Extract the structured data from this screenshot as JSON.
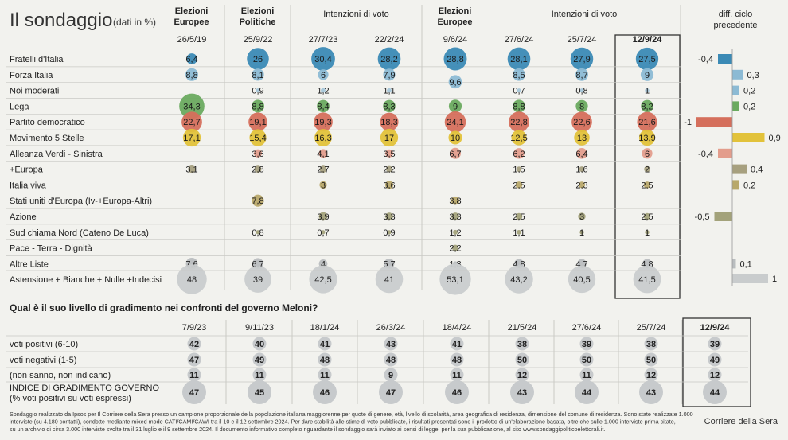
{
  "title": "Il sondaggio",
  "title_note": "(dati in %)",
  "poll": {
    "groups": [
      {
        "label": [
          "Elezioni",
          "Europee"
        ],
        "bold": true,
        "span": 1
      },
      {
        "label": [
          "Elezioni",
          "Politiche"
        ],
        "bold": true,
        "span": 1
      },
      {
        "label": [
          "Intenzioni di voto"
        ],
        "bold": false,
        "span": 2
      },
      {
        "label": [
          "Elezioni",
          "Europee"
        ],
        "bold": true,
        "span": 1
      },
      {
        "label": [
          "Intenzioni di voto"
        ],
        "bold": false,
        "span": 3
      }
    ],
    "dates": [
      "26/5/19",
      "25/9/22",
      "27/7/23",
      "22/2/24",
      "9/6/24",
      "27/6/24",
      "25/7/24",
      "12/9/24"
    ],
    "diff_header": [
      "diff. ciclo",
      "precedente"
    ]
  },
  "chart_data": [
    {
      "type": "bubble-table",
      "title": "Il sondaggio (dati in %)",
      "columns": [
        "26/5/19",
        "25/9/22",
        "27/7/23",
        "22/2/24",
        "9/6/24",
        "27/6/24",
        "25/7/24",
        "12/9/24"
      ],
      "highlight_column": "12/9/24",
      "rows": [
        {
          "label": "Fratelli d'Italia",
          "color": "#3b8ab5",
          "values": [
            "6,4",
            "26",
            "30,4",
            "28,2",
            "28,8",
            "28,1",
            "27,9",
            "27,5"
          ],
          "diff": "-0,4"
        },
        {
          "label": "Forza Italia",
          "color": "#8cbad4",
          "values": [
            "8,8",
            "8,1",
            "6",
            "7,9",
            "9,6",
            "8,5",
            "8,7",
            "9"
          ],
          "diff": "0,3"
        },
        {
          "label": "Noi moderati",
          "color": "#a6c6d8",
          "values": [
            "",
            "0,9",
            "1,2",
            "1,1",
            "",
            "0,7",
            "0,8",
            "1"
          ],
          "diff": "0,2"
        },
        {
          "label": "Lega",
          "color": "#6aaa5f",
          "values": [
            "34,3",
            "8,8",
            "8,4",
            "8,3",
            "9",
            "8,8",
            "8",
            "8,2"
          ],
          "diff": "0,2"
        },
        {
          "label": "Partito democratico",
          "color": "#d56f5c",
          "values": [
            "22,7",
            "19,1",
            "19,3",
            "18,3",
            "24,1",
            "22,8",
            "22,6",
            "21,6"
          ],
          "diff": "-1"
        },
        {
          "label": "Movimento 5 Stelle",
          "color": "#e2c23a",
          "values": [
            "17,1",
            "15,4",
            "16,3",
            "17",
            "10",
            "12,5",
            "13",
            "13,9"
          ],
          "diff": "0,9"
        },
        {
          "label": "Alleanza Verdi - Sinistra",
          "color": "#e39d8c",
          "values": [
            "",
            "3,6",
            "4,1",
            "3,5",
            "6,7",
            "6,2",
            "6,4",
            "6"
          ],
          "diff": "-0,4"
        },
        {
          "label": "+Europa",
          "color": "#a7a07f",
          "values": [
            "3,1",
            "2,8",
            "2,7",
            "2,2",
            "",
            "1,5",
            "1,6",
            "2"
          ],
          "diff": "0,4"
        },
        {
          "label": "Italia viva",
          "color": "#b8a86a",
          "values": [
            "",
            "",
            "3",
            "3,6",
            "",
            "2,5",
            "2,3",
            "2,5"
          ],
          "diff": "0,2"
        },
        {
          "label": "Stati uniti d'Europa (Iv-+Europa-Altri)",
          "color": "#b8a86a",
          "values": [
            "",
            "7,8",
            "",
            "",
            "3,8",
            "",
            "",
            ""
          ],
          "diff": ""
        },
        {
          "label": "Azione",
          "color": "#a3a27a",
          "values": [
            "",
            "",
            "3,9",
            "3,3",
            "3,3",
            "2,5",
            "3",
            "2,5"
          ],
          "diff": "-0,5"
        },
        {
          "label": "Sud chiama Nord (Cateno De Luca)",
          "color": "#a3a27a",
          "values": [
            "",
            "0,8",
            "0,7",
            "0,9",
            "1,2",
            "1,1",
            "1",
            "1"
          ],
          "diff": ""
        },
        {
          "label": "Pace - Terra - Dignità",
          "color": "#a3a27a",
          "values": [
            "",
            "",
            "",
            "",
            "2,2",
            "",
            "",
            ""
          ],
          "diff": ""
        },
        {
          "label": "Altre Liste",
          "color": "#b9bdbf",
          "values": [
            "7,6",
            "6,7",
            "4",
            "5,7",
            "1,3",
            "4,8",
            "4,7",
            "4,8"
          ],
          "diff": "0,1"
        },
        {
          "label": "Astensione + Bianche + Nulle +Indecisi",
          "color": "#c9cccd",
          "values": [
            "48",
            "39",
            "42,5",
            "41",
            "53,1",
            "43,2",
            "40,5",
            "41,5"
          ],
          "diff": "1"
        }
      ],
      "diff_values": [
        -0.4,
        0.3,
        0.2,
        0.2,
        -1,
        0.9,
        -0.4,
        0.4,
        0.2,
        null,
        -0.5,
        null,
        null,
        0.1,
        1
      ],
      "diff_colors": [
        "#3b8ab5",
        "#8cbad4",
        "#8cbad4",
        "#6aaa5f",
        "#d56f5c",
        "#e2c23a",
        "#e39d8c",
        "#a7a07f",
        "#b8a86a",
        "",
        "#a3a27a",
        "",
        "",
        "#b9bdbf",
        "#c9cccd"
      ],
      "diff_range": [
        -1,
        1
      ]
    },
    {
      "type": "bubble-table",
      "title": "Qual è il suo livello di gradimento nei confronti del governo Meloni?",
      "columns": [
        "7/9/23",
        "9/11/23",
        "18/1/24",
        "26/3/24",
        "18/4/24",
        "21/5/24",
        "27/6/24",
        "25/7/24",
        "12/9/24"
      ],
      "highlight_column": "12/9/24",
      "rows": [
        {
          "label": "voti positivi (6-10)",
          "values": [
            "42",
            "40",
            "41",
            "43",
            "41",
            "38",
            "39",
            "38",
            "39"
          ]
        },
        {
          "label": "voti negativi (1-5)",
          "values": [
            "47",
            "49",
            "48",
            "48",
            "48",
            "50",
            "50",
            "50",
            "49"
          ]
        },
        {
          "label": "(non sanno, non indicano)",
          "values": [
            "11",
            "11",
            "11",
            "9",
            "11",
            "12",
            "11",
            "12",
            "12"
          ]
        },
        {
          "label": [
            "INDICE DI GRADIMENTO GOVERNO",
            "(% voti positivi su voti espressi)"
          ],
          "values": [
            "47",
            "45",
            "46",
            "47",
            "46",
            "43",
            "44",
            "43",
            "44"
          ]
        }
      ]
    }
  ],
  "footer": {
    "note_lines": [
      "Sondaggio realizzato da Ipsos per Il Corriere della Sera presso un campione proporzionale della popolazione italiana maggiorenne per quote di genere, età, livello di scolarità, area geografica di residenza, dimensione del comune di residenza. Sono state realizzate 1.000",
      "interviste (su 4.180 contatti), condotte mediante mixed mode CATI/CAMI/CAWI tra il 10 e il 12 settembre 2024. Per dare stabilità alle stime di voto pubblicate, i risultati presentati sono il prodotto di un'elaborazione basata, oltre che sulle 1.000 interviste prima citate,",
      "su un archivio di circa 3.000 interviste svolte tra il 31 luglio e il 9 settembre 2024. Il documento informativo completo riguardante il sondaggio sarà inviato ai sensi di legge, per la sua pubblicazione, al sito www.sondaggipoliticoelettorali.it."
    ],
    "source": "Corriere della Sera"
  },
  "colors": {
    "bg": "#f2f2ee",
    "rule": "#c9c9c4",
    "gray_bubble": "#c7cacc",
    "text": "#222222"
  }
}
